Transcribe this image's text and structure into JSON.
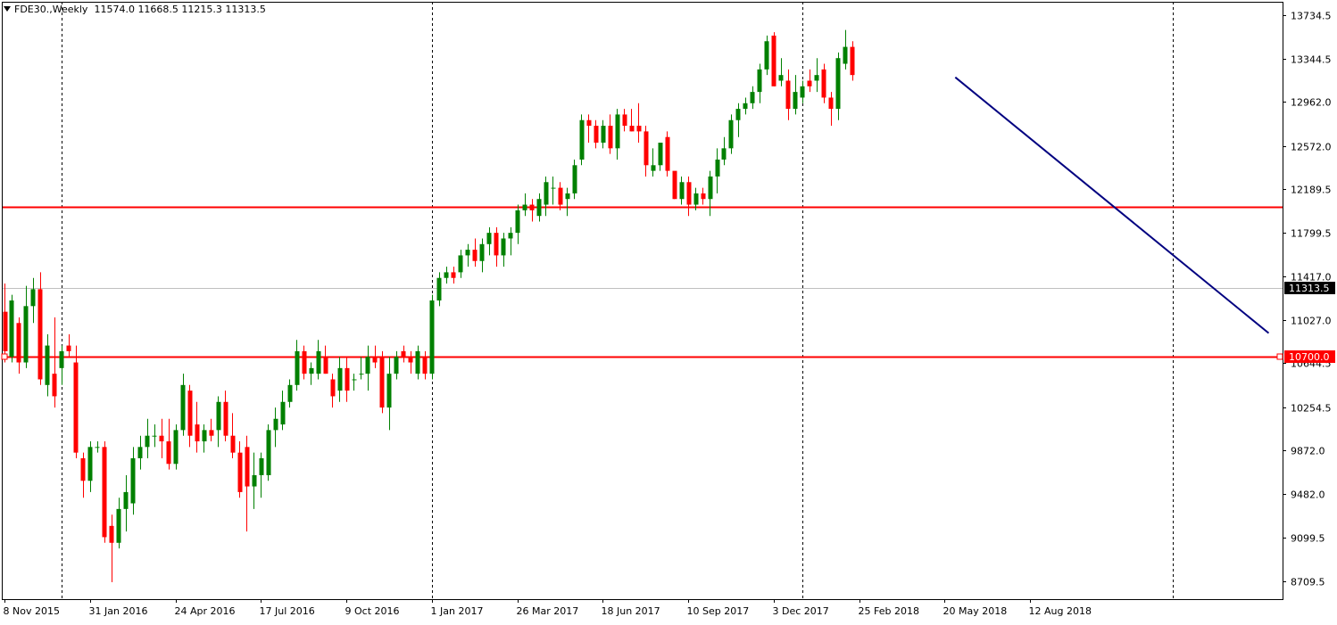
{
  "header": {
    "symbol_label": "FDE30.,Weekly",
    "ohlc": "11574.0 11668.5 11215.3 11313.5"
  },
  "colors": {
    "bull": "#008000",
    "bear": "#ff0000",
    "trendline": "#000080",
    "hline": "#ff0000",
    "grid_vertical": "#000000",
    "axis": "#000000",
    "current_price_bg": "#000000"
  },
  "chart_data": {
    "type": "candlestick",
    "symbol": "FDE30.",
    "timeframe": "Weekly",
    "ylim": [
      8550,
      13850
    ],
    "y_ticks": [
      13734.5,
      13344.5,
      12962.0,
      12572.0,
      12189.5,
      11799.5,
      11417.0,
      11027.0,
      10644.5,
      10254.5,
      9872.0,
      9482.0,
      9099.5,
      8709.5
    ],
    "y_tick_labels": [
      "13734.5",
      "13344.5",
      "12962.0",
      "12572.0",
      "12189.5",
      "11799.5",
      "11417.0",
      "11027.0",
      "10644.5",
      "10254.5",
      "9872.0",
      "9482.0",
      "9099.5",
      "8709.5"
    ],
    "x_tick_labels": [
      {
        "label": "8 Nov 2015",
        "bar": 0
      },
      {
        "label": "31 Jan 2016",
        "bar": 12
      },
      {
        "label": "24 Apr 2016",
        "bar": 24
      },
      {
        "label": "17 Jul 2016",
        "bar": 36
      },
      {
        "label": "9 Oct 2016",
        "bar": 48
      },
      {
        "label": "1 Jan 2017",
        "bar": 60
      },
      {
        "label": "26 Mar 2017",
        "bar": 72
      },
      {
        "label": "18 Jun 2017",
        "bar": 84
      },
      {
        "label": "10 Sep 2017",
        "bar": 96
      },
      {
        "label": "3 Dec 2017",
        "bar": 108
      },
      {
        "label": "25 Feb 2018",
        "bar": 120
      },
      {
        "label": "20 May 2018",
        "bar": 132
      },
      {
        "label": "12 Aug 2018",
        "bar": 144
      }
    ],
    "period_separators_bar": [
      8,
      60,
      112,
      164
    ],
    "horizontal_levels": [
      {
        "price": 12030,
        "label": ""
      },
      {
        "price": 10700,
        "label": "10700.0"
      }
    ],
    "current_price": {
      "price": 11313.5,
      "label": "11313.5"
    },
    "trendline": {
      "start": {
        "bar": 133.5,
        "price": 13180
      },
      "end": {
        "bar": 177.5,
        "price": 10910
      }
    },
    "candles": [
      {
        "o": 11100,
        "h": 11350,
        "l": 10650,
        "c": 10750
      },
      {
        "o": 10700,
        "h": 11250,
        "l": 10650,
        "c": 11200
      },
      {
        "o": 11000,
        "h": 11050,
        "l": 10550,
        "c": 10650
      },
      {
        "o": 10650,
        "h": 11330,
        "l": 10600,
        "c": 11150
      },
      {
        "o": 11150,
        "h": 11400,
        "l": 11000,
        "c": 11300
      },
      {
        "o": 11300,
        "h": 11450,
        "l": 10450,
        "c": 10500
      },
      {
        "o": 10450,
        "h": 10900,
        "l": 10350,
        "c": 10800
      },
      {
        "o": 10550,
        "h": 11050,
        "l": 10250,
        "c": 10350
      },
      {
        "o": 10600,
        "h": 10800,
        "l": 10450,
        "c": 10750
      },
      {
        "o": 10800,
        "h": 10900,
        "l": 10700,
        "c": 10750
      },
      {
        "o": 10650,
        "h": 10800,
        "l": 9800,
        "c": 9850
      },
      {
        "o": 9800,
        "h": 9850,
        "l": 9450,
        "c": 9600
      },
      {
        "o": 9600,
        "h": 9950,
        "l": 9500,
        "c": 9900
      },
      {
        "o": 9900,
        "h": 9950,
        "l": 9850,
        "c": 9900
      },
      {
        "o": 9900,
        "h": 9950,
        "l": 9050,
        "c": 9100
      },
      {
        "o": 9200,
        "h": 9300,
        "l": 8700,
        "c": 9050
      },
      {
        "o": 9050,
        "h": 9450,
        "l": 9000,
        "c": 9350
      },
      {
        "o": 9350,
        "h": 9650,
        "l": 9150,
        "c": 9500
      },
      {
        "o": 9400,
        "h": 9900,
        "l": 9300,
        "c": 9800
      },
      {
        "o": 9800,
        "h": 10000,
        "l": 9700,
        "c": 9900
      },
      {
        "o": 9900,
        "h": 10150,
        "l": 9800,
        "c": 10000
      },
      {
        "o": 10000,
        "h": 10100,
        "l": 9900,
        "c": 10000
      },
      {
        "o": 10000,
        "h": 10150,
        "l": 9800,
        "c": 9950
      },
      {
        "o": 9950,
        "h": 10150,
        "l": 9700,
        "c": 9750
      },
      {
        "o": 9750,
        "h": 10100,
        "l": 9700,
        "c": 10050
      },
      {
        "o": 10050,
        "h": 10550,
        "l": 10000,
        "c": 10450
      },
      {
        "o": 10400,
        "h": 10450,
        "l": 9900,
        "c": 10000
      },
      {
        "o": 10100,
        "h": 10300,
        "l": 9850,
        "c": 9950
      },
      {
        "o": 9950,
        "h": 10100,
        "l": 9850,
        "c": 10050
      },
      {
        "o": 10050,
        "h": 10150,
        "l": 9950,
        "c": 10000
      },
      {
        "o": 10050,
        "h": 10350,
        "l": 9900,
        "c": 10300
      },
      {
        "o": 10300,
        "h": 10400,
        "l": 9950,
        "c": 10000
      },
      {
        "o": 10000,
        "h": 10200,
        "l": 9800,
        "c": 9850
      },
      {
        "o": 9850,
        "h": 9950,
        "l": 9450,
        "c": 9500
      },
      {
        "o": 9900,
        "h": 10000,
        "l": 9150,
        "c": 9550
      },
      {
        "o": 9550,
        "h": 9850,
        "l": 9350,
        "c": 9650
      },
      {
        "o": 9650,
        "h": 9850,
        "l": 9450,
        "c": 9800
      },
      {
        "o": 9650,
        "h": 10100,
        "l": 9600,
        "c": 10050
      },
      {
        "o": 10050,
        "h": 10250,
        "l": 9900,
        "c": 10150
      },
      {
        "o": 10100,
        "h": 10400,
        "l": 10050,
        "c": 10300
      },
      {
        "o": 10300,
        "h": 10500,
        "l": 10250,
        "c": 10450
      },
      {
        "o": 10450,
        "h": 10850,
        "l": 10400,
        "c": 10750
      },
      {
        "o": 10750,
        "h": 10800,
        "l": 10500,
        "c": 10550
      },
      {
        "o": 10550,
        "h": 10650,
        "l": 10450,
        "c": 10600
      },
      {
        "o": 10550,
        "h": 10850,
        "l": 10500,
        "c": 10750
      },
      {
        "o": 10700,
        "h": 10800,
        "l": 10550,
        "c": 10550
      },
      {
        "o": 10500,
        "h": 10550,
        "l": 10250,
        "c": 10350
      },
      {
        "o": 10400,
        "h": 10700,
        "l": 10300,
        "c": 10600
      },
      {
        "o": 10600,
        "h": 10700,
        "l": 10300,
        "c": 10400
      },
      {
        "o": 10500,
        "h": 10550,
        "l": 10400,
        "c": 10500
      },
      {
        "o": 10550,
        "h": 10700,
        "l": 10500,
        "c": 10550
      },
      {
        "o": 10550,
        "h": 10800,
        "l": 10400,
        "c": 10700
      },
      {
        "o": 10700,
        "h": 10800,
        "l": 10600,
        "c": 10650
      },
      {
        "o": 10700,
        "h": 10750,
        "l": 10200,
        "c": 10250
      },
      {
        "o": 10250,
        "h": 10700,
        "l": 10050,
        "c": 10550
      },
      {
        "o": 10550,
        "h": 10750,
        "l": 10500,
        "c": 10700
      },
      {
        "o": 10750,
        "h": 10800,
        "l": 10650,
        "c": 10700
      },
      {
        "o": 10700,
        "h": 10750,
        "l": 10550,
        "c": 10650
      },
      {
        "o": 10550,
        "h": 10800,
        "l": 10500,
        "c": 10750
      },
      {
        "o": 10700,
        "h": 10750,
        "l": 10500,
        "c": 10550
      },
      {
        "o": 10550,
        "h": 11250,
        "l": 10500,
        "c": 11200
      },
      {
        "o": 11200,
        "h": 11450,
        "l": 11150,
        "c": 11400
      },
      {
        "o": 11400,
        "h": 11500,
        "l": 11350,
        "c": 11450
      },
      {
        "o": 11450,
        "h": 11500,
        "l": 11350,
        "c": 11400
      },
      {
        "o": 11450,
        "h": 11650,
        "l": 11400,
        "c": 11600
      },
      {
        "o": 11600,
        "h": 11700,
        "l": 11500,
        "c": 11650
      },
      {
        "o": 11650,
        "h": 11750,
        "l": 11500,
        "c": 11550
      },
      {
        "o": 11550,
        "h": 11750,
        "l": 11450,
        "c": 11700
      },
      {
        "o": 11700,
        "h": 11850,
        "l": 11600,
        "c": 11800
      },
      {
        "o": 11800,
        "h": 11850,
        "l": 11500,
        "c": 11600
      },
      {
        "o": 11600,
        "h": 11800,
        "l": 11500,
        "c": 11750
      },
      {
        "o": 11750,
        "h": 11850,
        "l": 11600,
        "c": 11800
      },
      {
        "o": 11800,
        "h": 12050,
        "l": 11700,
        "c": 12000
      },
      {
        "o": 12000,
        "h": 12150,
        "l": 11950,
        "c": 12050
      },
      {
        "o": 12050,
        "h": 12100,
        "l": 11900,
        "c": 12000
      },
      {
        "o": 11950,
        "h": 12150,
        "l": 11900,
        "c": 12100
      },
      {
        "o": 12050,
        "h": 12300,
        "l": 11950,
        "c": 12250
      },
      {
        "o": 12200,
        "h": 12300,
        "l": 12050,
        "c": 12200
      },
      {
        "o": 12200,
        "h": 12250,
        "l": 12000,
        "c": 12050
      },
      {
        "o": 12100,
        "h": 12200,
        "l": 11950,
        "c": 12150
      },
      {
        "o": 12150,
        "h": 12450,
        "l": 12100,
        "c": 12400
      },
      {
        "o": 12450,
        "h": 12850,
        "l": 12400,
        "c": 12800
      },
      {
        "o": 12800,
        "h": 12850,
        "l": 12600,
        "c": 12750
      },
      {
        "o": 12750,
        "h": 12800,
        "l": 12550,
        "c": 12600
      },
      {
        "o": 12600,
        "h": 12800,
        "l": 12550,
        "c": 12750
      },
      {
        "o": 12750,
        "h": 12850,
        "l": 12500,
        "c": 12550
      },
      {
        "o": 12550,
        "h": 12900,
        "l": 12450,
        "c": 12850
      },
      {
        "o": 12850,
        "h": 12900,
        "l": 12700,
        "c": 12750
      },
      {
        "o": 12750,
        "h": 12900,
        "l": 12700,
        "c": 12700
      },
      {
        "o": 12750,
        "h": 12950,
        "l": 12600,
        "c": 12700
      },
      {
        "o": 12700,
        "h": 12750,
        "l": 12300,
        "c": 12400
      },
      {
        "o": 12350,
        "h": 12550,
        "l": 12300,
        "c": 12400
      },
      {
        "o": 12400,
        "h": 12600,
        "l": 12350,
        "c": 12600
      },
      {
        "o": 12650,
        "h": 12700,
        "l": 12300,
        "c": 12350
      },
      {
        "o": 12350,
        "h": 12300,
        "l": 12100,
        "c": 12100
      },
      {
        "o": 12100,
        "h": 12300,
        "l": 12050,
        "c": 12250
      },
      {
        "o": 12250,
        "h": 12300,
        "l": 11950,
        "c": 12050
      },
      {
        "o": 12050,
        "h": 12200,
        "l": 12000,
        "c": 12150
      },
      {
        "o": 12150,
        "h": 12200,
        "l": 12050,
        "c": 12100
      },
      {
        "o": 12100,
        "h": 12350,
        "l": 11950,
        "c": 12300
      },
      {
        "o": 12300,
        "h": 12550,
        "l": 12150,
        "c": 12450
      },
      {
        "o": 12450,
        "h": 12650,
        "l": 12400,
        "c": 12550
      },
      {
        "o": 12550,
        "h": 12850,
        "l": 12500,
        "c": 12800
      },
      {
        "o": 12800,
        "h": 12950,
        "l": 12650,
        "c": 12900
      },
      {
        "o": 12900,
        "h": 13000,
        "l": 12850,
        "c": 12950
      },
      {
        "o": 12950,
        "h": 13100,
        "l": 12900,
        "c": 13050
      },
      {
        "o": 13050,
        "h": 13300,
        "l": 12950,
        "c": 13250
      },
      {
        "o": 13250,
        "h": 13550,
        "l": 13200,
        "c": 13500
      },
      {
        "o": 13550,
        "h": 13580,
        "l": 13100,
        "c": 13100
      },
      {
        "o": 13150,
        "h": 13350,
        "l": 13100,
        "c": 13200
      },
      {
        "o": 13150,
        "h": 13250,
        "l": 12800,
        "c": 12900
      },
      {
        "o": 12900,
        "h": 13200,
        "l": 12850,
        "c": 13050
      },
      {
        "o": 13000,
        "h": 13150,
        "l": 12950,
        "c": 13100
      },
      {
        "o": 13150,
        "h": 13250,
        "l": 13050,
        "c": 13100
      },
      {
        "o": 13150,
        "h": 13350,
        "l": 13050,
        "c": 13200
      },
      {
        "o": 13250,
        "h": 13300,
        "l": 12950,
        "c": 13000
      },
      {
        "o": 13000,
        "h": 13050,
        "l": 12750,
        "c": 12900
      },
      {
        "o": 12900,
        "h": 13400,
        "l": 12800,
        "c": 13350
      },
      {
        "o": 13300,
        "h": 13600,
        "l": 13250,
        "c": 13450
      },
      {
        "o": 13450,
        "h": 13500,
        "l": 13150,
        "c": 13200
      }
    ]
  }
}
